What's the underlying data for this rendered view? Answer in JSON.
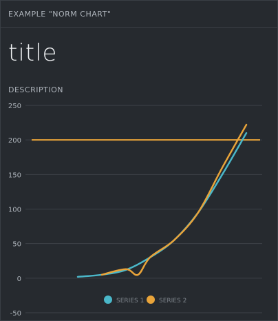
{
  "header": {
    "title": "EXAMPLE \"NORM CHART\""
  },
  "title": "title",
  "description": "DESCRIPTION",
  "colors": {
    "series1": "#4ab7c9",
    "series2": "#e9a43a",
    "grid": "#3d4248",
    "axis_text": "#aeb4bb",
    "background": "#262a2f"
  },
  "chart_data": {
    "type": "line",
    "ylim": [
      -50,
      250
    ],
    "yticks": [
      -50,
      0,
      50,
      100,
      150,
      200,
      250
    ],
    "grid": true,
    "legend_position": "bottom-center",
    "series": [
      {
        "name": "SERIES 1",
        "color": "#4ab7c9",
        "x": [
          0,
          1,
          2,
          3,
          4,
          5,
          6,
          7,
          8
        ],
        "values": [
          2,
          5,
          12,
          30,
          55,
          95,
          150,
          210,
          null
        ]
      },
      {
        "name": "SERIES 2",
        "color": "#e9a43a",
        "x": [
          1,
          2,
          2.5,
          3,
          4,
          5,
          6,
          7
        ],
        "values": [
          5,
          13,
          5,
          30,
          55,
          95,
          160,
          222
        ]
      }
    ],
    "reference_line": {
      "value": 200,
      "color": "#e9a43a"
    }
  }
}
